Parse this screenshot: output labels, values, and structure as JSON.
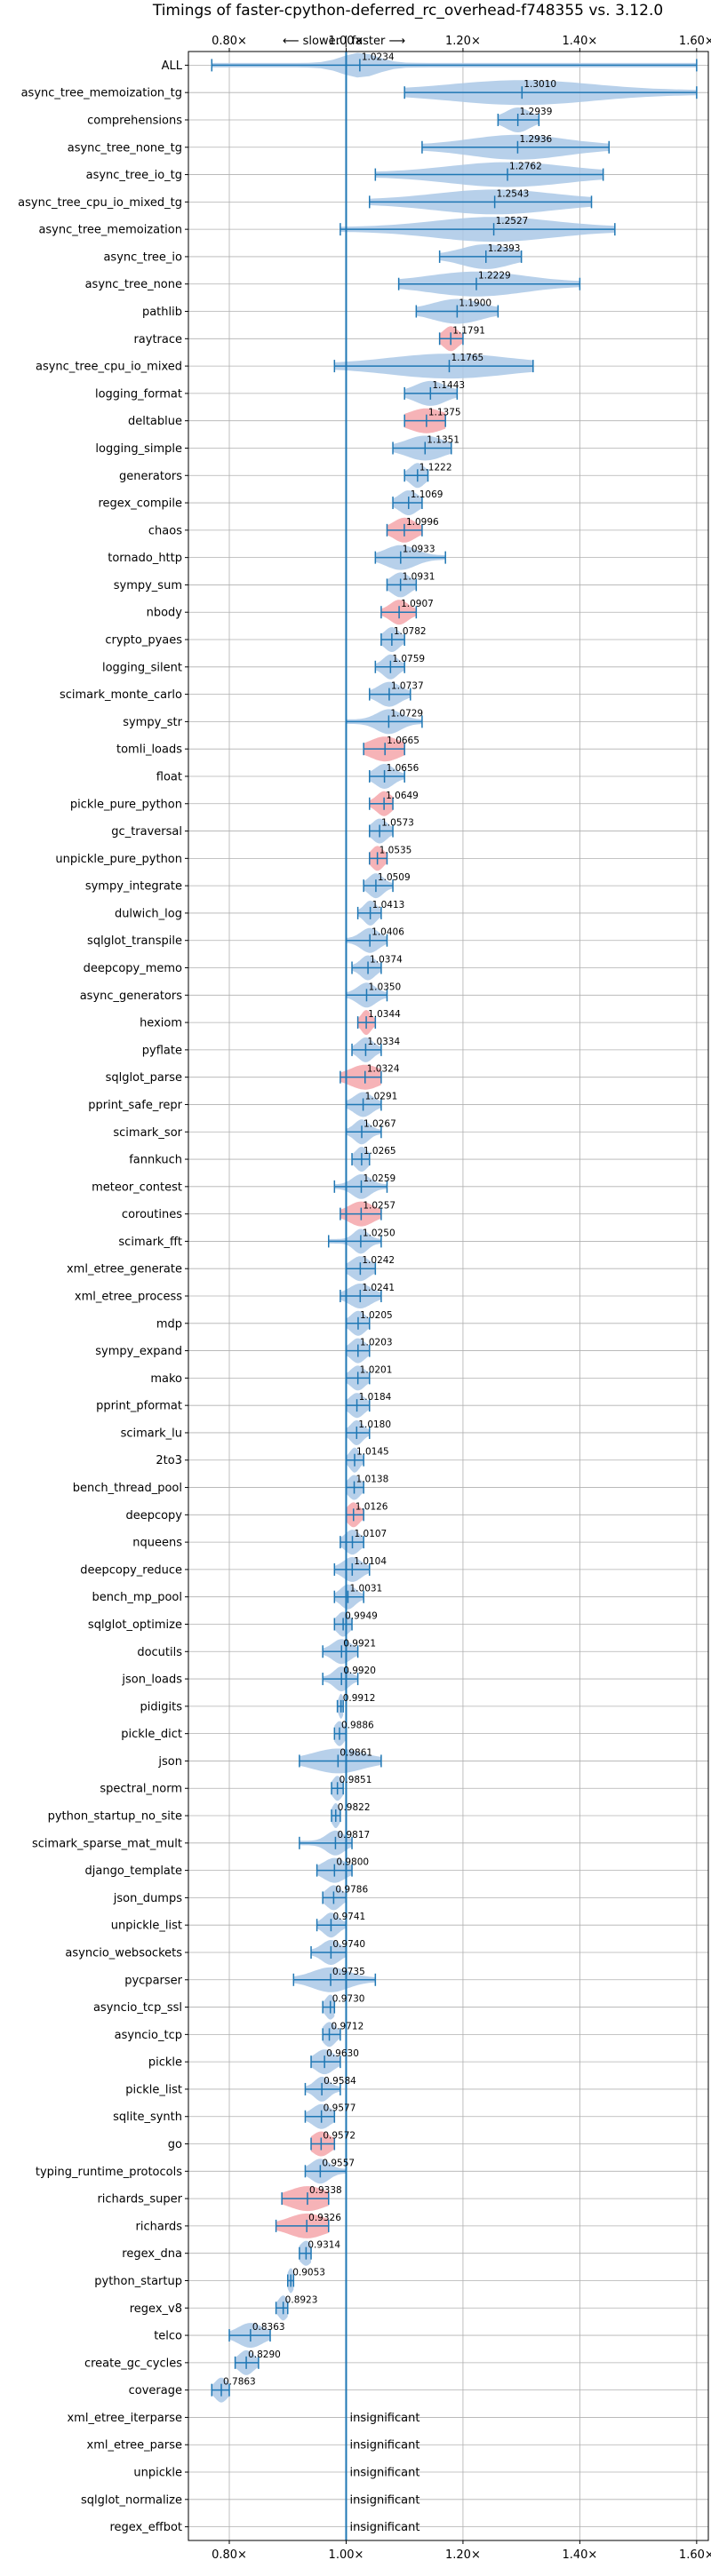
{
  "chart_data": {
    "type": "violin",
    "title": "Timings of faster-cpython-deferred_rc_overhead-f748355 vs. 3.12.0",
    "direction_note": "⟵ slower | faster ⟶",
    "xlim": [
      0.73,
      1.62
    ],
    "x_ticks": [
      0.8,
      1.0,
      1.2,
      1.4,
      1.6
    ],
    "x_tick_labels": [
      "0.80×",
      "1.00×",
      "1.20×",
      "1.40×",
      "1.60×"
    ],
    "grid": true,
    "reference_line": 1.0,
    "colors": {
      "violin_default": "#aac8e6",
      "violin_slower_highlight": "#f4a6aa",
      "whisker": "#1f77b4",
      "reference_line": "#1f77b4",
      "grid": "#b0b0b0"
    },
    "insignificant_label": "insignificant",
    "benchmarks": [
      {
        "name": "ALL",
        "value": 1.0234,
        "label": "1.0234",
        "min": 0.77,
        "max": 1.6,
        "spread": 0.03
      },
      {
        "name": "async_tree_memoization_tg",
        "value": 1.301,
        "label": "1.3010",
        "min": 1.1,
        "max": 1.6,
        "spread": 0.12
      },
      {
        "name": "comprehensions",
        "value": 1.2939,
        "label": "1.2939",
        "min": 1.26,
        "max": 1.33,
        "spread": 0.02
      },
      {
        "name": "async_tree_none_tg",
        "value": 1.2936,
        "label": "1.2936",
        "min": 1.13,
        "max": 1.45,
        "spread": 0.08
      },
      {
        "name": "async_tree_io_tg",
        "value": 1.2762,
        "label": "1.2762",
        "min": 1.05,
        "max": 1.44,
        "spread": 0.1
      },
      {
        "name": "async_tree_cpu_io_mixed_tg",
        "value": 1.2543,
        "label": "1.2543",
        "min": 1.04,
        "max": 1.42,
        "spread": 0.1
      },
      {
        "name": "async_tree_memoization",
        "value": 1.2527,
        "label": "1.2527",
        "min": 0.99,
        "max": 1.46,
        "spread": 0.1
      },
      {
        "name": "async_tree_io",
        "value": 1.2393,
        "label": "1.2393",
        "min": 1.16,
        "max": 1.3,
        "spread": 0.04
      },
      {
        "name": "async_tree_none",
        "value": 1.2229,
        "label": "1.2229",
        "min": 1.09,
        "max": 1.4,
        "spread": 0.08
      },
      {
        "name": "pathlib",
        "value": 1.19,
        "label": "1.1900",
        "min": 1.12,
        "max": 1.26,
        "spread": 0.04
      },
      {
        "name": "raytrace",
        "value": 1.1791,
        "label": "1.1791",
        "min": 1.16,
        "max": 1.2,
        "spread": 0.012,
        "highlight": true
      },
      {
        "name": "async_tree_cpu_io_mixed",
        "value": 1.1765,
        "label": "1.1765",
        "min": 0.98,
        "max": 1.32,
        "spread": 0.1
      },
      {
        "name": "logging_format",
        "value": 1.1443,
        "label": "1.1443",
        "min": 1.1,
        "max": 1.19,
        "spread": 0.025
      },
      {
        "name": "deltablue",
        "value": 1.1375,
        "label": "1.1375",
        "min": 1.1,
        "max": 1.17,
        "spread": 0.03,
        "highlight": true
      },
      {
        "name": "logging_simple",
        "value": 1.1351,
        "label": "1.1351",
        "min": 1.08,
        "max": 1.18,
        "spread": 0.03
      },
      {
        "name": "generators",
        "value": 1.1222,
        "label": "1.1222",
        "min": 1.1,
        "max": 1.14,
        "spread": 0.012
      },
      {
        "name": "regex_compile",
        "value": 1.1069,
        "label": "1.1069",
        "min": 1.08,
        "max": 1.13,
        "spread": 0.015
      },
      {
        "name": "chaos",
        "value": 1.0996,
        "label": "1.0996",
        "min": 1.07,
        "max": 1.13,
        "spread": 0.018,
        "highlight": true
      },
      {
        "name": "tornado_http",
        "value": 1.0933,
        "label": "1.0933",
        "min": 1.05,
        "max": 1.17,
        "spread": 0.025
      },
      {
        "name": "sympy_sum",
        "value": 1.0931,
        "label": "1.0931",
        "min": 1.07,
        "max": 1.12,
        "spread": 0.015
      },
      {
        "name": "nbody",
        "value": 1.0907,
        "label": "1.0907",
        "min": 1.06,
        "max": 1.12,
        "spread": 0.015,
        "highlight": true
      },
      {
        "name": "crypto_pyaes",
        "value": 1.0782,
        "label": "1.0782",
        "min": 1.06,
        "max": 1.1,
        "spread": 0.012
      },
      {
        "name": "logging_silent",
        "value": 1.0759,
        "label": "1.0759",
        "min": 1.05,
        "max": 1.1,
        "spread": 0.012
      },
      {
        "name": "scimark_monte_carlo",
        "value": 1.0737,
        "label": "1.0737",
        "min": 1.04,
        "max": 1.11,
        "spread": 0.018
      },
      {
        "name": "sympy_str",
        "value": 1.0729,
        "label": "1.0729",
        "min": 1.0,
        "max": 1.13,
        "spread": 0.02
      },
      {
        "name": "tomli_loads",
        "value": 1.0665,
        "label": "1.0665",
        "min": 1.03,
        "max": 1.1,
        "spread": 0.025,
        "highlight": true
      },
      {
        "name": "float",
        "value": 1.0656,
        "label": "1.0656",
        "min": 1.04,
        "max": 1.1,
        "spread": 0.015
      },
      {
        "name": "pickle_pure_python",
        "value": 1.0649,
        "label": "1.0649",
        "min": 1.04,
        "max": 1.08,
        "spread": 0.012,
        "highlight": true
      },
      {
        "name": "gc_traversal",
        "value": 1.0573,
        "label": "1.0573",
        "min": 1.04,
        "max": 1.08,
        "spread": 0.012
      },
      {
        "name": "unpickle_pure_python",
        "value": 1.0535,
        "label": "1.0535",
        "min": 1.04,
        "max": 1.07,
        "spread": 0.01,
        "highlight": true
      },
      {
        "name": "sympy_integrate",
        "value": 1.0509,
        "label": "1.0509",
        "min": 1.03,
        "max": 1.08,
        "spread": 0.012
      },
      {
        "name": "dulwich_log",
        "value": 1.0413,
        "label": "1.0413",
        "min": 1.02,
        "max": 1.06,
        "spread": 0.01
      },
      {
        "name": "sqlglot_transpile",
        "value": 1.0406,
        "label": "1.0406",
        "min": 1.0,
        "max": 1.07,
        "spread": 0.015
      },
      {
        "name": "deepcopy_memo",
        "value": 1.0374,
        "label": "1.0374",
        "min": 1.01,
        "max": 1.06,
        "spread": 0.012
      },
      {
        "name": "async_generators",
        "value": 1.035,
        "label": "1.0350",
        "min": 1.0,
        "max": 1.07,
        "spread": 0.015
      },
      {
        "name": "hexiom",
        "value": 1.0344,
        "label": "1.0344",
        "min": 1.02,
        "max": 1.05,
        "spread": 0.008,
        "highlight": true
      },
      {
        "name": "pyflate",
        "value": 1.0334,
        "label": "1.0334",
        "min": 1.01,
        "max": 1.06,
        "spread": 0.012
      },
      {
        "name": "sqlglot_parse",
        "value": 1.0324,
        "label": "1.0324",
        "min": 0.99,
        "max": 1.06,
        "spread": 0.025,
        "highlight": true
      },
      {
        "name": "pprint_safe_repr",
        "value": 1.0291,
        "label": "1.0291",
        "min": 1.0,
        "max": 1.06,
        "spread": 0.015
      },
      {
        "name": "scimark_sor",
        "value": 1.0267,
        "label": "1.0267",
        "min": 1.0,
        "max": 1.06,
        "spread": 0.012
      },
      {
        "name": "fannkuch",
        "value": 1.0265,
        "label": "1.0265",
        "min": 1.01,
        "max": 1.04,
        "spread": 0.01
      },
      {
        "name": "meteor_contest",
        "value": 1.0259,
        "label": "1.0259",
        "min": 0.98,
        "max": 1.07,
        "spread": 0.015
      },
      {
        "name": "coroutines",
        "value": 1.0257,
        "label": "1.0257",
        "min": 0.99,
        "max": 1.06,
        "spread": 0.02,
        "highlight": true
      },
      {
        "name": "scimark_fft",
        "value": 1.025,
        "label": "1.0250",
        "min": 0.97,
        "max": 1.06,
        "spread": 0.012
      },
      {
        "name": "xml_etree_generate",
        "value": 1.0242,
        "label": "1.0242",
        "min": 1.0,
        "max": 1.05,
        "spread": 0.015
      },
      {
        "name": "xml_etree_process",
        "value": 1.0241,
        "label": "1.0241",
        "min": 0.99,
        "max": 1.06,
        "spread": 0.018
      },
      {
        "name": "mdp",
        "value": 1.0205,
        "label": "1.0205",
        "min": 1.0,
        "max": 1.04,
        "spread": 0.012
      },
      {
        "name": "sympy_expand",
        "value": 1.0203,
        "label": "1.0203",
        "min": 1.0,
        "max": 1.04,
        "spread": 0.012
      },
      {
        "name": "mako",
        "value": 1.0201,
        "label": "1.0201",
        "min": 1.0,
        "max": 1.04,
        "spread": 0.012
      },
      {
        "name": "pprint_pformat",
        "value": 1.0184,
        "label": "1.0184",
        "min": 1.0,
        "max": 1.04,
        "spread": 0.012
      },
      {
        "name": "scimark_lu",
        "value": 1.018,
        "label": "1.0180",
        "min": 1.0,
        "max": 1.04,
        "spread": 0.01
      },
      {
        "name": "2to3",
        "value": 1.0145,
        "label": "1.0145",
        "min": 1.0,
        "max": 1.03,
        "spread": 0.008
      },
      {
        "name": "bench_thread_pool",
        "value": 1.0138,
        "label": "1.0138",
        "min": 1.0,
        "max": 1.03,
        "spread": 0.01
      },
      {
        "name": "deepcopy",
        "value": 1.0126,
        "label": "1.0126",
        "min": 1.0,
        "max": 1.03,
        "spread": 0.01,
        "highlight": true
      },
      {
        "name": "nqueens",
        "value": 1.0107,
        "label": "1.0107",
        "min": 0.99,
        "max": 1.03,
        "spread": 0.012
      },
      {
        "name": "deepcopy_reduce",
        "value": 1.0104,
        "label": "1.0104",
        "min": 0.98,
        "max": 1.04,
        "spread": 0.015
      },
      {
        "name": "bench_mp_pool",
        "value": 1.0031,
        "label": "1.0031",
        "min": 0.98,
        "max": 1.03,
        "spread": 0.012
      },
      {
        "name": "sqlglot_optimize",
        "value": 0.9949,
        "label": "0.9949",
        "min": 0.98,
        "max": 1.01,
        "spread": 0.01
      },
      {
        "name": "docutils",
        "value": 0.9921,
        "label": "0.9921",
        "min": 0.96,
        "max": 1.02,
        "spread": 0.015
      },
      {
        "name": "json_loads",
        "value": 0.992,
        "label": "0.9920",
        "min": 0.96,
        "max": 1.02,
        "spread": 0.012
      },
      {
        "name": "pidigits",
        "value": 0.9912,
        "label": "0.9912",
        "min": 0.985,
        "max": 0.995,
        "spread": 0.004
      },
      {
        "name": "pickle_dict",
        "value": 0.9886,
        "label": "0.9886",
        "min": 0.98,
        "max": 1.0,
        "spread": 0.008
      },
      {
        "name": "json",
        "value": 0.9861,
        "label": "0.9861",
        "min": 0.92,
        "max": 1.06,
        "spread": 0.04
      },
      {
        "name": "spectral_norm",
        "value": 0.9851,
        "label": "0.9851",
        "min": 0.975,
        "max": 0.995,
        "spread": 0.008
      },
      {
        "name": "python_startup_no_site",
        "value": 0.9822,
        "label": "0.9822",
        "min": 0.975,
        "max": 0.99,
        "spread": 0.006
      },
      {
        "name": "scimark_sparse_mat_mult",
        "value": 0.9817,
        "label": "0.9817",
        "min": 0.92,
        "max": 1.01,
        "spread": 0.015
      },
      {
        "name": "django_template",
        "value": 0.98,
        "label": "0.9800",
        "min": 0.95,
        "max": 1.01,
        "spread": 0.018
      },
      {
        "name": "json_dumps",
        "value": 0.9786,
        "label": "0.9786",
        "min": 0.96,
        "max": 1.0,
        "spread": 0.012
      },
      {
        "name": "unpickle_list",
        "value": 0.9741,
        "label": "0.9741",
        "min": 0.95,
        "max": 1.0,
        "spread": 0.012
      },
      {
        "name": "asyncio_websockets",
        "value": 0.974,
        "label": "0.9740",
        "min": 0.94,
        "max": 1.0,
        "spread": 0.015
      },
      {
        "name": "pycparser",
        "value": 0.9735,
        "label": "0.9735",
        "min": 0.91,
        "max": 1.05,
        "spread": 0.03
      },
      {
        "name": "asyncio_tcp_ssl",
        "value": 0.973,
        "label": "0.9730",
        "min": 0.96,
        "max": 0.98,
        "spread": 0.008
      },
      {
        "name": "asyncio_tcp",
        "value": 0.9712,
        "label": "0.9712",
        "min": 0.96,
        "max": 0.99,
        "spread": 0.01
      },
      {
        "name": "pickle",
        "value": 0.963,
        "label": "0.9630",
        "min": 0.94,
        "max": 0.99,
        "spread": 0.015
      },
      {
        "name": "pickle_list",
        "value": 0.9584,
        "label": "0.9584",
        "min": 0.93,
        "max": 0.99,
        "spread": 0.012
      },
      {
        "name": "sqlite_synth",
        "value": 0.9577,
        "label": "0.9577",
        "min": 0.93,
        "max": 0.98,
        "spread": 0.015
      },
      {
        "name": "go",
        "value": 0.9572,
        "label": "0.9572",
        "min": 0.94,
        "max": 0.98,
        "spread": 0.015,
        "highlight": true
      },
      {
        "name": "typing_runtime_protocols",
        "value": 0.9557,
        "label": "0.9557",
        "min": 0.93,
        "max": 1.0,
        "spread": 0.015
      },
      {
        "name": "richards_super",
        "value": 0.9338,
        "label": "0.9338",
        "min": 0.89,
        "max": 0.97,
        "spread": 0.03,
        "highlight": true
      },
      {
        "name": "richards",
        "value": 0.9326,
        "label": "0.9326",
        "min": 0.88,
        "max": 0.97,
        "spread": 0.03,
        "highlight": true
      },
      {
        "name": "regex_dna",
        "value": 0.9314,
        "label": "0.9314",
        "min": 0.92,
        "max": 0.94,
        "spread": 0.01
      },
      {
        "name": "python_startup",
        "value": 0.9053,
        "label": "0.9053",
        "min": 0.9,
        "max": 0.91,
        "spread": 0.005
      },
      {
        "name": "regex_v8",
        "value": 0.8923,
        "label": "0.8923",
        "min": 0.88,
        "max": 0.9,
        "spread": 0.008
      },
      {
        "name": "telco",
        "value": 0.8363,
        "label": "0.8363",
        "min": 0.8,
        "max": 0.87,
        "spread": 0.02
      },
      {
        "name": "create_gc_cycles",
        "value": 0.829,
        "label": "0.8290",
        "min": 0.81,
        "max": 0.85,
        "spread": 0.012
      },
      {
        "name": "coverage",
        "value": 0.7863,
        "label": "0.7863",
        "min": 0.77,
        "max": 0.8,
        "spread": 0.01
      },
      {
        "name": "xml_etree_iterparse",
        "insignificant": true
      },
      {
        "name": "xml_etree_parse",
        "insignificant": true
      },
      {
        "name": "unpickle",
        "insignificant": true
      },
      {
        "name": "sqlglot_normalize",
        "insignificant": true
      },
      {
        "name": "regex_effbot",
        "insignificant": true
      }
    ]
  }
}
